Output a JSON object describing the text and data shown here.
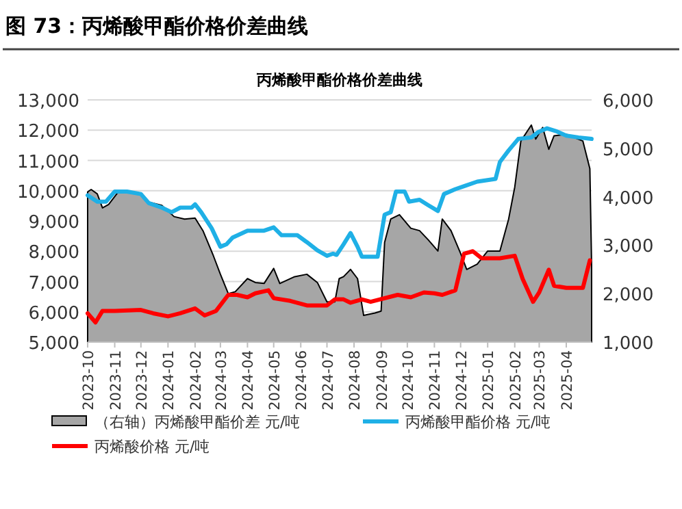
{
  "chart_data": {
    "type": "line",
    "title": "图 73：丙烯酸甲酯价格价差曲线",
    "subtitle": "丙烯酸甲酯价格价差曲线",
    "xlim": [
      "2023-10-01",
      "2025-04-30"
    ],
    "xticks": [
      "2023-10",
      "2023-11",
      "2023-12",
      "2024-01",
      "2024-02",
      "2024-03",
      "2024-04",
      "2024-05",
      "2024-06",
      "2024-07",
      "2024-08",
      "2024-09",
      "2024-10",
      "2024-11",
      "2024-12",
      "2025-01",
      "2025-02",
      "2025-03",
      "2025-04"
    ],
    "ylim": [
      5000,
      13000
    ],
    "yticks": [
      {
        "value": 5000,
        "label": "5,000"
      },
      {
        "value": 6000,
        "label": "6,000"
      },
      {
        "value": 7000,
        "label": "7,000"
      },
      {
        "value": 8000,
        "label": "8,000"
      },
      {
        "value": 9000,
        "label": "9,000"
      },
      {
        "value": 10000,
        "label": "10,000"
      },
      {
        "value": 11000,
        "label": "11,000"
      },
      {
        "value": 12000,
        "label": "12,000"
      },
      {
        "value": 13000,
        "label": "13,000"
      }
    ],
    "y2lim": [
      1000,
      6000
    ],
    "y2ticks": [
      {
        "value": 1000,
        "label": "1,000"
      },
      {
        "value": 2000,
        "label": "2,000"
      },
      {
        "value": 3000,
        "label": "3,000"
      },
      {
        "value": 4000,
        "label": "4,000"
      },
      {
        "value": 5000,
        "label": "5,000"
      },
      {
        "value": 6000,
        "label": "6,000"
      }
    ],
    "grid": "y",
    "legend": "bottom",
    "series": [
      {
        "name": "（右轴）丙烯酸甲酯价差 元/吨",
        "type": "area",
        "axis": "y2",
        "color": "#a6a6a6",
        "x": [
          "2023-10-01",
          "2023-10-05",
          "2023-10-12",
          "2023-10-18",
          "2023-10-25",
          "2023-11-05",
          "2023-12-01",
          "2023-12-08",
          "2023-12-25",
          "2024-01-08",
          "2024-01-20",
          "2024-02-01",
          "2024-02-10",
          "2024-02-22",
          "2024-03-01",
          "2024-03-10",
          "2024-03-18",
          "2024-04-01",
          "2024-04-10",
          "2024-04-20",
          "2024-05-01",
          "2024-05-08",
          "2024-05-25",
          "2024-06-08",
          "2024-06-20",
          "2024-07-01",
          "2024-07-10",
          "2024-07-15",
          "2024-07-20",
          "2024-07-28",
          "2024-08-05",
          "2024-08-12",
          "2024-08-25",
          "2024-09-01",
          "2024-09-05",
          "2024-09-12",
          "2024-09-22",
          "2024-10-05",
          "2024-10-15",
          "2024-10-25",
          "2024-11-05",
          "2024-11-10",
          "2024-11-20",
          "2024-12-01",
          "2024-12-08",
          "2024-12-20",
          "2025-01-01",
          "2025-01-15",
          "2025-01-25",
          "2025-02-01",
          "2025-02-08",
          "2025-02-20",
          "2025-02-25",
          "2025-03-05",
          "2025-03-12",
          "2025-03-18",
          "2025-04-01",
          "2025-04-20",
          "2025-04-28",
          "2025-04-30"
        ],
        "values": [
          4100,
          4150,
          4060,
          3770,
          3840,
          4100,
          4060,
          3900,
          3820,
          3590,
          3540,
          3560,
          3300,
          2780,
          2400,
          2000,
          2040,
          2310,
          2230,
          2210,
          2520,
          2210,
          2350,
          2400,
          2230,
          1830,
          1830,
          2310,
          2350,
          2500,
          2310,
          1550,
          1600,
          1640,
          3060,
          3540,
          3630,
          3350,
          3300,
          3110,
          2880,
          3540,
          3300,
          2830,
          2500,
          2610,
          2880,
          2880,
          3540,
          4200,
          5150,
          5480,
          5190,
          5430,
          4980,
          5260,
          5290,
          5150,
          4580,
          2590
        ]
      },
      {
        "name": "丙烯酸甲酯价格 元/吨",
        "color": "#1fb0e6",
        "x": [
          "2023-10-01",
          "2023-10-12",
          "2023-10-22",
          "2023-11-01",
          "2023-11-15",
          "2023-12-01",
          "2023-12-10",
          "2023-12-25",
          "2024-01-05",
          "2024-01-15",
          "2024-01-28",
          "2024-02-01",
          "2024-02-08",
          "2024-02-20",
          "2024-03-01",
          "2024-03-08",
          "2024-03-15",
          "2024-04-01",
          "2024-04-20",
          "2024-05-01",
          "2024-05-10",
          "2024-05-28",
          "2024-06-08",
          "2024-06-20",
          "2024-07-01",
          "2024-07-08",
          "2024-07-12",
          "2024-07-20",
          "2024-07-28",
          "2024-08-05",
          "2024-08-10",
          "2024-08-28",
          "2024-09-05",
          "2024-09-12",
          "2024-09-18",
          "2024-09-28",
          "2024-10-03",
          "2024-10-15",
          "2024-10-25",
          "2024-11-05",
          "2024-11-12",
          "2024-11-25",
          "2024-12-05",
          "2024-12-20",
          "2025-01-10",
          "2025-01-15",
          "2025-01-25",
          "2025-02-05",
          "2025-02-20",
          "2025-02-28",
          "2025-03-10",
          "2025-03-20",
          "2025-04-01",
          "2025-04-15",
          "2025-04-30"
        ],
        "values": [
          9850,
          9640,
          9640,
          9970,
          9970,
          9890,
          9590,
          9440,
          9290,
          9440,
          9440,
          9550,
          9290,
          8760,
          8150,
          8230,
          8450,
          8680,
          8680,
          8790,
          8530,
          8530,
          8300,
          8030,
          7850,
          7920,
          7880,
          8230,
          8600,
          8150,
          7820,
          7820,
          9210,
          9290,
          9970,
          9970,
          9640,
          9700,
          9520,
          9330,
          9890,
          10050,
          10150,
          10300,
          10390,
          10950,
          11330,
          11710,
          11760,
          11940,
          12060,
          11970,
          11820,
          11760,
          11710
        ]
      },
      {
        "name": "丙烯酸价格 元/吨",
        "color": "#ff0000",
        "x": [
          "2023-10-01",
          "2023-10-10",
          "2023-10-18",
          "2023-11-01",
          "2023-12-01",
          "2023-12-15",
          "2024-01-01",
          "2024-01-15",
          "2024-02-01",
          "2024-02-12",
          "2024-02-25",
          "2024-03-10",
          "2024-03-20",
          "2024-04-01",
          "2024-04-10",
          "2024-04-25",
          "2024-05-01",
          "2024-05-20",
          "2024-06-08",
          "2024-07-01",
          "2024-07-10",
          "2024-07-20",
          "2024-07-28",
          "2024-08-10",
          "2024-08-20",
          "2024-09-20",
          "2024-10-05",
          "2024-10-20",
          "2024-11-01",
          "2024-11-10",
          "2024-11-25",
          "2024-12-05",
          "2024-12-15",
          "2024-12-25",
          "2025-01-15",
          "2025-02-01",
          "2025-02-10",
          "2025-02-22",
          "2025-03-01",
          "2025-03-12",
          "2025-03-18",
          "2025-04-01",
          "2025-04-20",
          "2025-04-28"
        ],
        "values": [
          5950,
          5650,
          6030,
          6030,
          6060,
          5950,
          5850,
          5950,
          6110,
          5880,
          6030,
          6560,
          6560,
          6480,
          6610,
          6710,
          6450,
          6360,
          6210,
          6210,
          6410,
          6410,
          6300,
          6410,
          6330,
          6560,
          6480,
          6640,
          6610,
          6560,
          6710,
          7920,
          8000,
          7770,
          7770,
          7850,
          7090,
          6330,
          6640,
          7390,
          6860,
          6790,
          6790,
          7700
        ]
      }
    ]
  }
}
